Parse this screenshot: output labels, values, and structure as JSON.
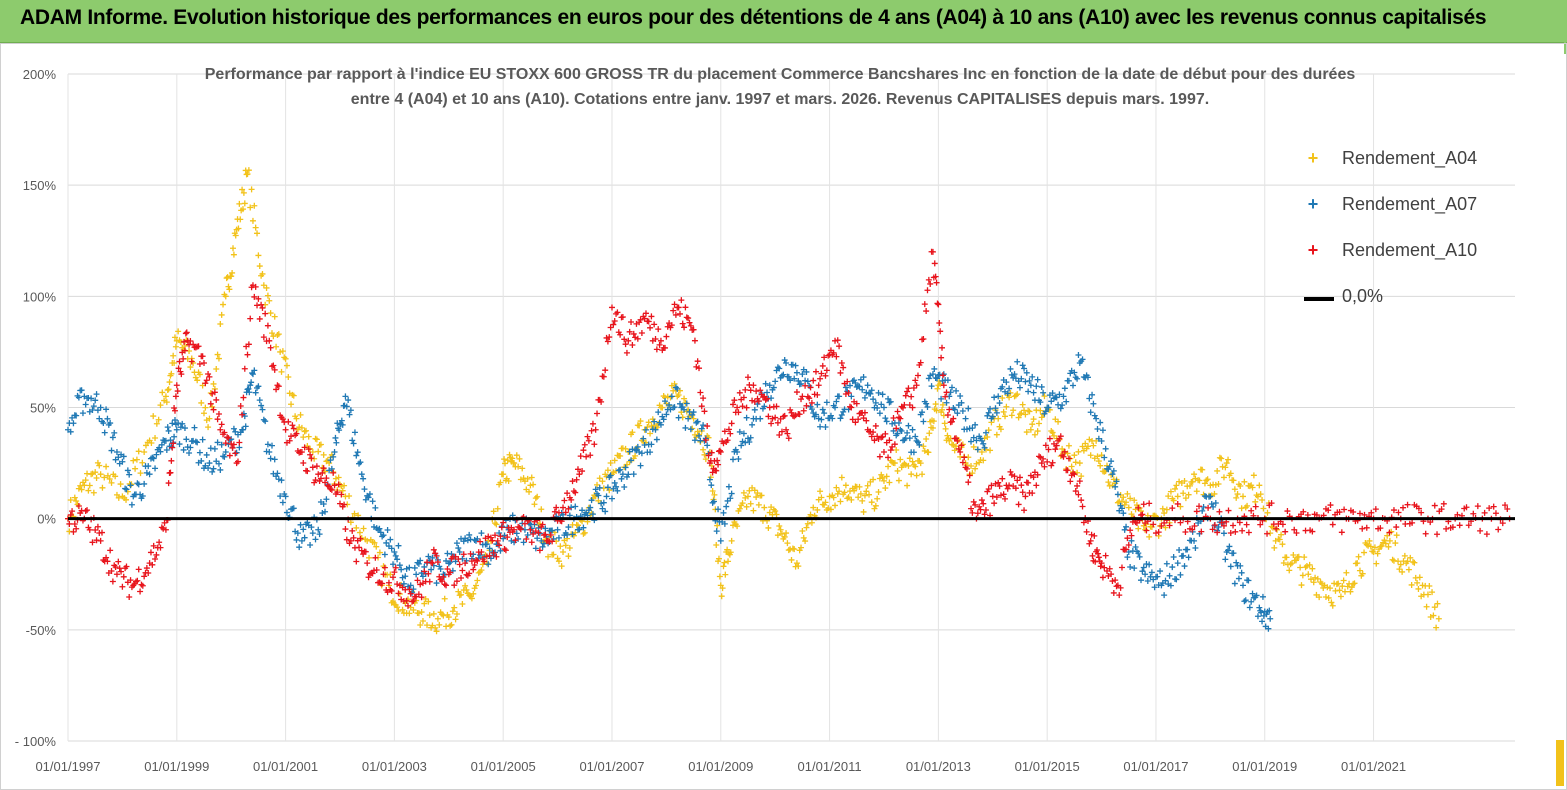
{
  "header": {
    "title": "ADAM Informe. Evolution historique des performances en euros pour des détentions de 4 ans (A04) à 10 ans (A10) avec les revenus connus capitalisés"
  },
  "chart_data": {
    "type": "scatter",
    "title_lines": [
      "Performance par rapport à l'indice EU STOXX 600 GROSS TR  du placement Commerce Bancshares Inc en fonction de la date de début pour des durées",
      "entre 4 (A04) et 10 ans (A10). Cotations entre janv. 1997 et mars. 2026. Revenus CAPITALISES depuis mars. 1997."
    ],
    "xlabel": "",
    "ylabel": "",
    "x_range": [
      1997.0,
      2023.6
    ],
    "ylim": [
      -100,
      200
    ],
    "y_ticks": [
      "200%",
      "150%",
      "100%",
      "50%",
      "0%",
      "-50%",
      "- 100%"
    ],
    "y_tick_values": [
      200,
      150,
      100,
      50,
      0,
      -50,
      -100
    ],
    "x_ticks": [
      "01/01/1997",
      "01/01/1999",
      "01/01/2001",
      "01/01/2003",
      "01/01/2005",
      "01/01/2007",
      "01/01/2009",
      "01/01/2011",
      "01/01/2013",
      "01/01/2015",
      "01/01/2017",
      "01/01/2019",
      "01/01/2021"
    ],
    "x_tick_values": [
      1997,
      1999,
      2001,
      2003,
      2005,
      2007,
      2009,
      2011,
      2013,
      2015,
      2017,
      2019,
      2021
    ],
    "grid": "horizontal",
    "legend_position": "right",
    "series": [
      {
        "name": "Rendement_A04",
        "color": "#f2c21a",
        "marker": "+",
        "x": [
          1997.0,
          1997.3,
          1997.6,
          1998.0,
          1998.4,
          1998.8,
          1999.0,
          1999.3,
          1999.6,
          1999.9,
          2000.1,
          2000.3,
          2000.6,
          2000.9,
          2001.2,
          2001.5,
          2001.8,
          2002.1,
          2002.5,
          2002.9,
          2003.2,
          2003.5,
          2003.8,
          2004.1,
          2004.4,
          2004.7,
          2005.0,
          2005.2,
          2005.5,
          2005.8,
          2006.1,
          2006.4,
          2006.7,
          2007.0,
          2007.3,
          2007.6,
          2007.9,
          2008.2,
          2008.5,
          2008.8,
          2009.0,
          2009.2,
          2009.5,
          2009.8,
          2010.1,
          2010.4,
          2010.7,
          2011.0,
          2011.3,
          2011.6,
          2011.9,
          2012.2,
          2012.5,
          2012.8,
          2013.0,
          2013.2,
          2013.5,
          2013.8,
          2014.1,
          2014.4,
          2014.7,
          2015.0,
          2015.3,
          2015.6,
          2015.9,
          2016.2,
          2016.5,
          2016.8,
          2017.1,
          2017.4,
          2017.7,
          2018.0,
          2018.3,
          2018.6,
          2018.9,
          2019.2,
          2019.5,
          2019.8,
          2020.1,
          2020.4,
          2020.7,
          2021.0,
          2021.3,
          2021.6,
          2021.9,
          2022.2
        ],
        "y": [
          0,
          15,
          20,
          10,
          30,
          55,
          80,
          70,
          45,
          100,
          130,
          155,
          105,
          75,
          45,
          30,
          25,
          10,
          -10,
          -30,
          -38,
          -42,
          -45,
          -40,
          -35,
          -20,
          20,
          25,
          15,
          -10,
          -15,
          -5,
          10,
          20,
          30,
          40,
          50,
          55,
          45,
          30,
          -30,
          -10,
          10,
          5,
          -5,
          -20,
          5,
          10,
          15,
          8,
          12,
          25,
          20,
          30,
          60,
          35,
          25,
          30,
          45,
          55,
          40,
          50,
          30,
          25,
          35,
          15,
          5,
          -5,
          0,
          10,
          20,
          15,
          25,
          10,
          15,
          -10,
          -20,
          -25,
          -30,
          -35,
          -20,
          -15,
          -10,
          -20,
          -30,
          -45
        ]
      },
      {
        "name": "Rendement_A07",
        "color": "#1f78b4",
        "marker": "+",
        "x": [
          1997.0,
          1997.3,
          1997.6,
          1997.9,
          1998.2,
          1998.5,
          1998.8,
          1999.0,
          1999.3,
          1999.6,
          1999.9,
          2000.2,
          2000.4,
          2000.7,
          2001.0,
          2001.3,
          2001.6,
          2001.9,
          2002.1,
          2002.4,
          2002.7,
          2003.0,
          2003.3,
          2003.6,
          2003.9,
          2004.2,
          2004.5,
          2004.8,
          2005.1,
          2005.4,
          2005.7,
          2006.0,
          2006.3,
          2006.6,
          2006.9,
          2007.2,
          2007.5,
          2007.8,
          2008.1,
          2008.4,
          2008.7,
          2009.0,
          2009.3,
          2009.6,
          2009.9,
          2010.2,
          2010.5,
          2010.8,
          2011.1,
          2011.4,
          2011.7,
          2012.0,
          2012.3,
          2012.6,
          2012.9,
          2013.2,
          2013.5,
          2013.8,
          2014.1,
          2014.4,
          2014.7,
          2015.0,
          2015.3,
          2015.6,
          2015.9,
          2016.2,
          2016.5,
          2016.8,
          2017.1,
          2017.4,
          2017.7,
          2018.0,
          2018.3,
          2018.6,
          2018.9,
          2019.1
        ],
        "y": [
          40,
          55,
          50,
          30,
          10,
          20,
          35,
          40,
          35,
          25,
          30,
          40,
          65,
          30,
          10,
          -10,
          -5,
          30,
          55,
          20,
          -5,
          -15,
          -30,
          -20,
          -25,
          -15,
          -10,
          -15,
          -5,
          -5,
          -10,
          -5,
          0,
          5,
          10,
          20,
          30,
          40,
          55,
          45,
          35,
          -10,
          30,
          45,
          60,
          70,
          65,
          45,
          50,
          55,
          60,
          50,
          40,
          35,
          65,
          55,
          45,
          35,
          55,
          65,
          60,
          50,
          55,
          70,
          45,
          20,
          -15,
          -25,
          -30,
          -20,
          -10,
          10,
          -15,
          -30,
          -40,
          -45
        ]
      },
      {
        "name": "Rendement_A10",
        "color": "#e8141c",
        "marker": "+",
        "x": [
          1997.0,
          1997.3,
          1997.6,
          1997.9,
          1998.2,
          1998.5,
          1998.8,
          1999.0,
          1999.2,
          1999.5,
          1999.8,
          2000.1,
          2000.4,
          2000.7,
          2001.0,
          2001.3,
          2001.6,
          2001.9,
          2002.2,
          2002.5,
          2002.8,
          2003.1,
          2003.4,
          2003.7,
          2004.0,
          2004.3,
          2004.6,
          2004.9,
          2005.2,
          2005.5,
          2005.8,
          2006.1,
          2006.4,
          2006.7,
          2007.0,
          2007.3,
          2007.6,
          2007.9,
          2008.2,
          2008.5,
          2008.8,
          2009.0,
          2009.3,
          2009.6,
          2009.9,
          2010.2,
          2010.5,
          2010.8,
          2011.1,
          2011.4,
          2011.7,
          2012.0,
          2012.3,
          2012.6,
          2012.9,
          2013.1,
          2013.4,
          2013.7,
          2014.0,
          2014.3,
          2014.6,
          2014.9,
          2015.2,
          2015.5,
          2015.8,
          2016.0,
          2016.3,
          2016.6,
          2016.9,
          2017.5,
          2018.0,
          2018.5,
          2019.0,
          2019.5,
          2020.0,
          2020.5,
          2021.0,
          2021.5,
          2022.0,
          2022.5,
          2023.0,
          2023.5
        ],
        "y": [
          0,
          0,
          -10,
          -25,
          -30,
          -20,
          -5,
          60,
          80,
          70,
          40,
          25,
          105,
          80,
          40,
          30,
          20,
          15,
          -10,
          -20,
          -25,
          -30,
          -35,
          -20,
          -25,
          -20,
          -15,
          -10,
          -5,
          -5,
          -10,
          5,
          20,
          40,
          95,
          80,
          90,
          80,
          95,
          85,
          25,
          30,
          50,
          60,
          50,
          40,
          55,
          60,
          80,
          50,
          40,
          30,
          45,
          60,
          120,
          60,
          30,
          0,
          10,
          15,
          10,
          25,
          35,
          20,
          -10,
          -20,
          -30,
          0,
          0,
          0,
          0,
          0,
          0,
          0,
          0,
          0,
          0,
          0,
          0,
          0,
          0,
          0
        ]
      },
      {
        "name": "0,0%",
        "color": "#000000",
        "type": "line",
        "x": [
          1997.0,
          2023.6
        ],
        "y": [
          0,
          0
        ]
      }
    ]
  }
}
